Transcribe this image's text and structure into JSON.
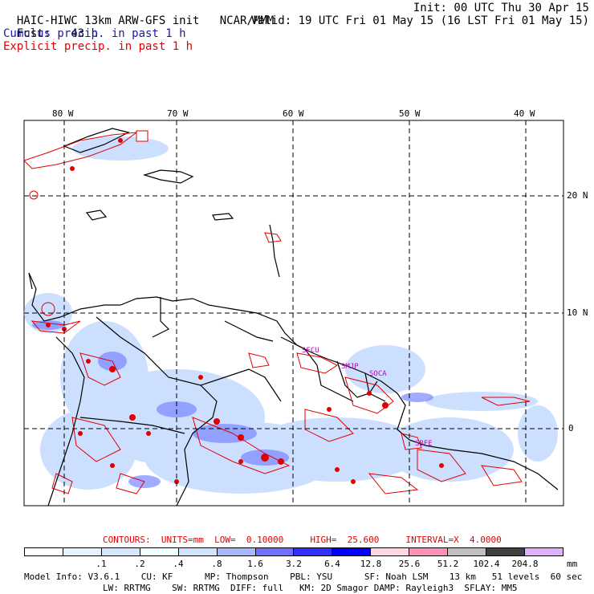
{
  "header": {
    "model": "HAIC-HIWC 13km ARW-GFS init",
    "org": "NCAR/MMM",
    "init": "Init: 00 UTC Thu 30 Apr 15",
    "fcst_label": "Fcst:",
    "fcst_value": "43 h",
    "valid": "Valid: 19 UTC Fri 01 May 15 (16 LST Fri 01 May 15)",
    "line_cumulus": "Cumulus precip. in past 1 h",
    "line_explicit": "Explicit precip. in past 1 h"
  },
  "axes": {
    "lon_labels": [
      "80 W",
      "70 W",
      "60 W",
      "50 W",
      "40 W"
    ],
    "lat_labels": [
      "20 N",
      "10 N",
      "0"
    ]
  },
  "map_labels": [
    "SFCU",
    "SMJP",
    "SOCA",
    "SBFE"
  ],
  "contours": {
    "title": "CONTOURS:",
    "units": "UNITS=mm",
    "low": "LOW=  0.10000",
    "high": "HIGH=  25.600",
    "interval": "INTERVAL=X  4.0000"
  },
  "colorbar": {
    "unit": "mm",
    "ticks": [
      ".1",
      ".2",
      ".4",
      ".8",
      "1.6",
      "3.2",
      "6.4",
      "12.8",
      "25.6",
      "51.2",
      "102.4",
      "204.8"
    ],
    "colors": [
      "#ffffff",
      "#e6f3ff",
      "#d4e8ff",
      "#f0ffff",
      "#d0e4ff",
      "#a8b8ff",
      "#7070ff",
      "#3030ff",
      "#0000ff",
      "#ffd8e0",
      "#ff90b8",
      "#c0c0c0",
      "#404040",
      "#e0b0ff"
    ]
  },
  "footer": {
    "line1": "Model Info: V3.6.1    CU: KF      MP: Thompson    PBL: YSU      SF: Noah LSM    13 km   51 levels  60 sec",
    "line2": "LW: RRTMG    SW: RRTMG  DIFF: full   KM: 2D Smagor DAMP: Rayleigh3  SFLAY: MM5"
  }
}
